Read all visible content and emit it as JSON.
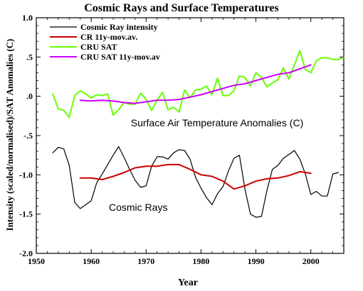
{
  "chart_data": {
    "type": "line",
    "title": "Cosmic Rays and Surface Temperatures",
    "xlabel": "Year",
    "ylabel": "Intensity (scaled/normalised)/SAT Anomalies (C)",
    "xlim": [
      1950,
      2006
    ],
    "ylim": [
      -2.0,
      1.0
    ],
    "x_ticks": [
      1950,
      1960,
      1970,
      1980,
      1990,
      2000
    ],
    "y_ticks": [
      1.0,
      0.5,
      0.0,
      -0.5,
      -1.0,
      -1.5,
      -2.0
    ],
    "y_tick_labels": [
      "1.0",
      ".5",
      ".0",
      "-.5",
      "-1.0",
      "-1.5",
      "-2.0"
    ],
    "grid": false,
    "legend_position": "top-left",
    "annotations": [
      {
        "text": "Surface Air Temperature Anomalies (C)",
        "x": 1980,
        "y": -0.33
      },
      {
        "text": "Cosmic Rays",
        "x": 1962,
        "y": -1.41
      }
    ],
    "series": [
      {
        "name": "Cosmic Ray intensity",
        "color": "#000000",
        "x": [
          1953,
          1954,
          1955,
          1956,
          1957,
          1958,
          1959,
          1960,
          1961,
          1962,
          1963,
          1964,
          1965,
          1966,
          1967,
          1968,
          1969,
          1970,
          1971,
          1972,
          1973,
          1974,
          1975,
          1976,
          1977,
          1978,
          1979,
          1980,
          1981,
          1982,
          1983,
          1984,
          1985,
          1986,
          1987,
          1988,
          1989,
          1990,
          1991,
          1992,
          1993,
          1994,
          1995,
          1996,
          1997,
          1998,
          1999,
          2000,
          2001,
          2002,
          2003,
          2004,
          2005
        ],
        "y": [
          -0.72,
          -0.65,
          -0.67,
          -0.88,
          -1.35,
          -1.43,
          -1.38,
          -1.33,
          -1.1,
          -0.99,
          -0.87,
          -0.75,
          -0.64,
          -0.78,
          -0.93,
          -1.07,
          -1.16,
          -1.14,
          -0.89,
          -0.77,
          -0.77,
          -0.8,
          -0.72,
          -0.68,
          -0.69,
          -0.8,
          -1.03,
          -1.17,
          -1.29,
          -1.38,
          -1.24,
          -1.15,
          -0.95,
          -0.79,
          -0.75,
          -1.18,
          -1.5,
          -1.54,
          -1.53,
          -1.2,
          -0.93,
          -0.88,
          -0.79,
          -0.74,
          -0.69,
          -0.8,
          -0.99,
          -1.25,
          -1.21,
          -1.27,
          -1.27,
          -0.99,
          -0.97
        ]
      },
      {
        "name": "CR 11y-mov.av.",
        "color": "#cc0000",
        "x": [
          1958,
          1960,
          1962,
          1964,
          1966,
          1968,
          1970,
          1972,
          1974,
          1976,
          1978,
          1980,
          1982,
          1984,
          1986,
          1988,
          1990,
          1992,
          1994,
          1996,
          1998,
          2000
        ],
        "y": [
          -1.04,
          -1.04,
          -1.06,
          -1.02,
          -0.97,
          -0.91,
          -0.89,
          -0.89,
          -0.87,
          -0.87,
          -0.93,
          -1.0,
          -1.02,
          -1.08,
          -1.18,
          -1.14,
          -1.08,
          -1.05,
          -1.04,
          -1.01,
          -0.96,
          -0.98
        ]
      },
      {
        "name": "CRU SAT",
        "color": "#66ff00",
        "x": [
          1953,
          1954,
          1955,
          1956,
          1957,
          1958,
          1959,
          1960,
          1961,
          1962,
          1963,
          1964,
          1965,
          1966,
          1967,
          1968,
          1969,
          1970,
          1971,
          1972,
          1973,
          1974,
          1975,
          1976,
          1977,
          1978,
          1979,
          1980,
          1981,
          1982,
          1983,
          1984,
          1985,
          1986,
          1987,
          1988,
          1989,
          1990,
          1991,
          1992,
          1993,
          1994,
          1995,
          1996,
          1997,
          1998,
          1999,
          2000,
          2001,
          2002,
          2003,
          2004,
          2005,
          2006
        ],
        "y": [
          0.03,
          -0.16,
          -0.18,
          -0.27,
          0.01,
          0.07,
          0.03,
          -0.02,
          0.02,
          0.01,
          0.03,
          -0.24,
          -0.17,
          -0.08,
          -0.1,
          -0.1,
          0.04,
          -0.04,
          -0.18,
          -0.05,
          0.05,
          -0.17,
          -0.14,
          -0.2,
          0.08,
          -0.02,
          0.08,
          0.09,
          0.13,
          0.02,
          0.23,
          0.01,
          0.01,
          0.07,
          0.26,
          0.24,
          0.13,
          0.3,
          0.24,
          0.12,
          0.17,
          0.21,
          0.36,
          0.22,
          0.4,
          0.58,
          0.34,
          0.3,
          0.45,
          0.49,
          0.49,
          0.47,
          0.47,
          0.49
        ]
      },
      {
        "name": "CRU SAT 11y-mov.av",
        "color": "#cc00ff",
        "x": [
          1958,
          1960,
          1962,
          1964,
          1966,
          1968,
          1970,
          1972,
          1974,
          1976,
          1978,
          1980,
          1982,
          1984,
          1986,
          1988,
          1990,
          1992,
          1994,
          1996,
          1998,
          2000
        ],
        "y": [
          -0.05,
          -0.06,
          -0.05,
          -0.06,
          -0.08,
          -0.09,
          -0.07,
          -0.05,
          -0.05,
          -0.04,
          -0.01,
          0.02,
          0.06,
          0.1,
          0.14,
          0.16,
          0.2,
          0.24,
          0.28,
          0.3,
          0.35,
          0.4
        ]
      }
    ]
  }
}
